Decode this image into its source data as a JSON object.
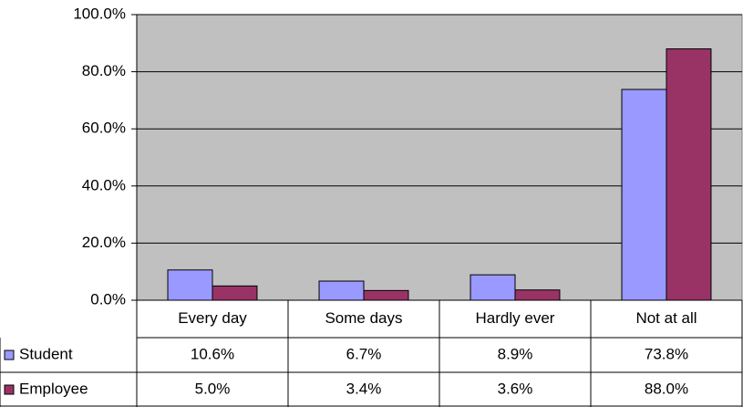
{
  "chart_data": {
    "type": "bar",
    "categories": [
      "Every day",
      "Some days",
      "Hardly ever",
      "Not at all"
    ],
    "series": [
      {
        "name": "Student",
        "color": "#9999ff",
        "values": [
          10.6,
          6.7,
          8.9,
          73.8
        ],
        "value_labels": [
          "10.6%",
          "6.7%",
          "8.9%",
          "73.8%"
        ]
      },
      {
        "name": "Employee",
        "color": "#993366",
        "values": [
          5.0,
          3.4,
          3.6,
          88.0
        ],
        "value_labels": [
          "5.0%",
          "3.4%",
          "3.6%",
          "88.0%"
        ]
      }
    ],
    "ylim": [
      0,
      100
    ],
    "yticks": [
      {
        "value": 0,
        "label": "0.0%"
      },
      {
        "value": 20,
        "label": "20.0%"
      },
      {
        "value": 40,
        "label": "40.0%"
      },
      {
        "value": 60,
        "label": "60.0%"
      },
      {
        "value": 80,
        "label": "80.0%"
      },
      {
        "value": 100,
        "label": "100.0%"
      }
    ],
    "grid": true,
    "plot_background": "#c0c0c0",
    "data_table": true
  }
}
